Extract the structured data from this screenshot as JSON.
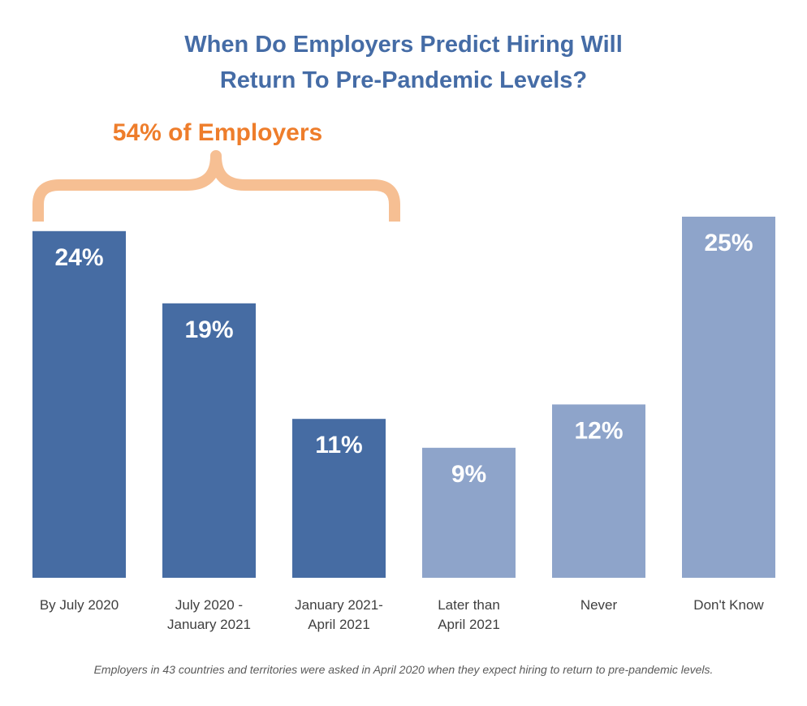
{
  "chart_data": {
    "type": "bar",
    "title": "When Do Employers Predict Hiring Will Return To Pre-Pandemic Levels?",
    "title_lines": [
      "When Do Employers Predict Hiring Will",
      "Return To Pre-Pandemic Levels?"
    ],
    "categories": [
      "By July 2020",
      "July 2020 - January 2021",
      "January 2021- April 2021",
      "Later than April 2021",
      "Never",
      "Don't Know"
    ],
    "category_lines": [
      [
        "By July 2020"
      ],
      [
        "July 2020 -",
        "January 2021"
      ],
      [
        "January 2021-",
        "April 2021"
      ],
      [
        "Later than",
        "April 2021"
      ],
      [
        "Never"
      ],
      [
        "Don't Know"
      ]
    ],
    "values": [
      24,
      19,
      11,
      9,
      12,
      25
    ],
    "value_labels": [
      "24%",
      "19%",
      "11%",
      "9%",
      "12%",
      "25%"
    ],
    "unit": "%",
    "bar_colors": [
      "#466ca3",
      "#466ca3",
      "#466ca3",
      "#8ea4ca",
      "#8ea4ca",
      "#8ea4ca"
    ],
    "ylim": [
      0,
      25
    ],
    "xlabel": "",
    "ylabel": "",
    "grid": false,
    "annotation": {
      "label": "54% of Employers",
      "spans_categories": [
        0,
        1,
        2
      ],
      "color": "#ee7d2b",
      "bracket_color": "#f6bf93"
    },
    "footnote": "Employers in 43 countries and territories were asked in April 2020 when they expect hiring to return to pre-pandemic levels."
  },
  "colors": {
    "title": "#456ca6",
    "dark_bar": "#466ca3",
    "light_bar": "#8ea4ca",
    "annotation_text": "#ee7d2b",
    "bracket": "#f6bf93",
    "category_text": "#3f3f3f",
    "footnote_text": "#5a5a5a"
  }
}
